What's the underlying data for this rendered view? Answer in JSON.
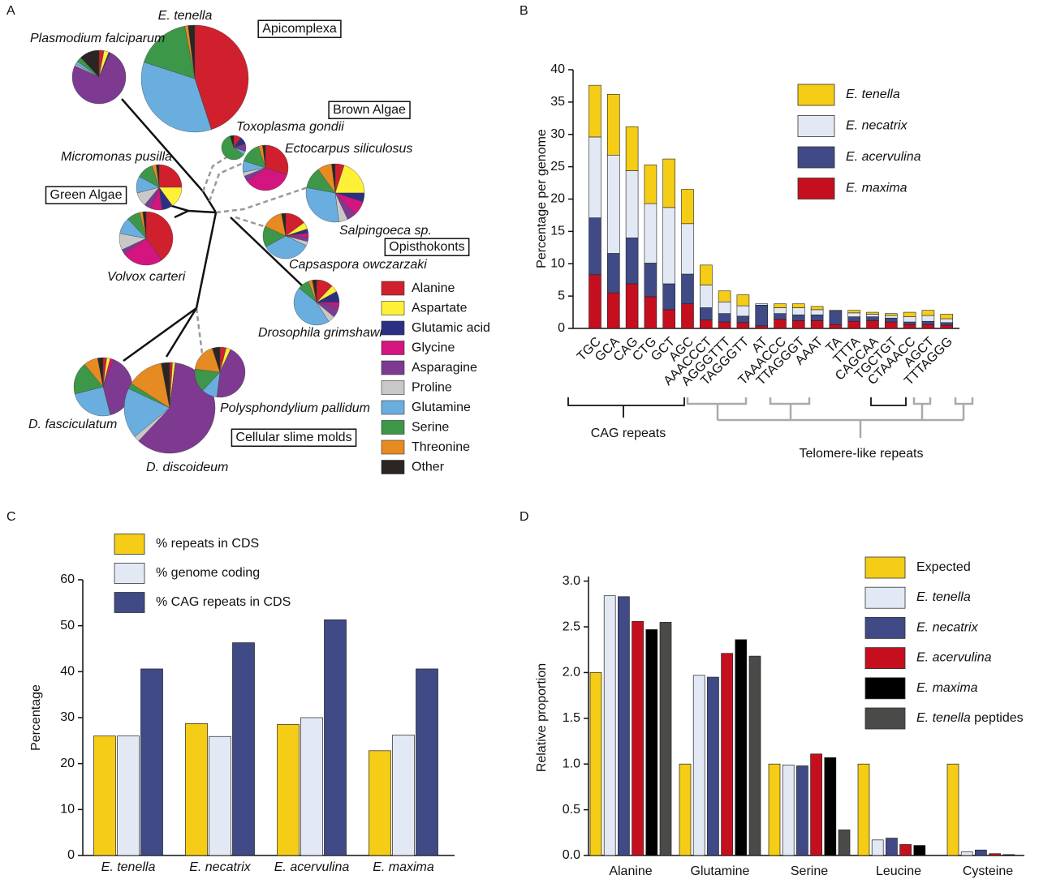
{
  "chart_data": [
    {
      "type": "pie-tree",
      "label": "A",
      "categories": [
        "Alanine",
        "Aspartate",
        "Glutamic acid",
        "Glycine",
        "Asparagine",
        "Proline",
        "Glutamine",
        "Serine",
        "Threonine",
        "Other"
      ],
      "colors": [
        "#d0202e",
        "#fdf036",
        "#2c2f84",
        "#d4147f",
        "#7d3a90",
        "#c8c8c8",
        "#6aaee0",
        "#3d9748",
        "#e68a22",
        "#2b2523"
      ],
      "groups": [
        "Apicomplexa",
        "Brown Algae",
        "Green Algae",
        "Opisthokonts",
        "Cellular slime molds"
      ],
      "species": [
        {
          "name": "E. tenella",
          "values": [
            45,
            0,
            0,
            0,
            0,
            0,
            35,
            17,
            1,
            2
          ]
        },
        {
          "name": "Plasmodium falciparum",
          "values": [
            3,
            3,
            1,
            0,
            75,
            1,
            2,
            3,
            0,
            12
          ]
        },
        {
          "name": "Toxoplasma gondii",
          "values": [
            10,
            0,
            10,
            0,
            10,
            0,
            5,
            60,
            0,
            5
          ]
        },
        {
          "name": "Ectocarpus siliculosus",
          "values": [
            30,
            0,
            0,
            35,
            4,
            3,
            8,
            15,
            3,
            2
          ]
        },
        {
          "name": "Micromonas pusilla",
          "values": [
            25,
            15,
            8,
            8,
            5,
            10,
            12,
            12,
            3,
            2
          ]
        },
        {
          "name": "Salpingoeca sp.",
          "values": [
            5,
            20,
            5,
            8,
            5,
            5,
            30,
            12,
            8,
            2
          ]
        },
        {
          "name": "Volvox carteri",
          "values": [
            40,
            0,
            0,
            25,
            3,
            10,
            10,
            8,
            2,
            2
          ]
        },
        {
          "name": "Capsaspora owczarzaki",
          "values": [
            15,
            5,
            3,
            3,
            3,
            3,
            35,
            15,
            15,
            3
          ]
        },
        {
          "name": "Drosophila grimshawi",
          "values": [
            12,
            5,
            8,
            3,
            8,
            5,
            45,
            8,
            3,
            3
          ]
        },
        {
          "name": "D. fasciculatum",
          "values": [
            2,
            2,
            0,
            2,
            40,
            0,
            25,
            18,
            8,
            3
          ]
        },
        {
          "name": "D. discoideum",
          "values": [
            1,
            1,
            0,
            0,
            60,
            2,
            18,
            2,
            13,
            3
          ]
        },
        {
          "name": "Polysphondylium pallidum",
          "values": [
            4,
            3,
            0,
            0,
            45,
            0,
            10,
            15,
            18,
            5
          ]
        }
      ]
    },
    {
      "type": "stacked-bar",
      "label": "B",
      "ylabel": "Percentage per genome",
      "categories": [
        "TGC",
        "GCA",
        "CAG",
        "CTG",
        "GCT",
        "AGC",
        "AAACCCT",
        "AGGGTTT",
        "TAGGGTT",
        "AT",
        "TAAACCC",
        "TTAGGGT",
        "AAAT",
        "TA",
        "TTTA",
        "CAGCAA",
        "TGCTGT",
        "CTAAACC",
        "AGCT",
        "TTTAGGG"
      ],
      "series": [
        {
          "name": "E. tenella",
          "color": "#f5cc16",
          "values": [
            8,
            9.4,
            6.8,
            6,
            7.5,
            5.3,
            3.1,
            1.7,
            1.7,
            0,
            0.6,
            0.6,
            0.5,
            0,
            0.4,
            0.3,
            0.3,
            0.7,
            0.8,
            0.7
          ]
        },
        {
          "name": "E. necatrix",
          "color": "#e3e9f4",
          "values": [
            12.5,
            15.2,
            10.4,
            9.2,
            11.8,
            7.8,
            3.5,
            1.8,
            1.6,
            0.2,
            0.9,
            1.1,
            0.8,
            0.1,
            0.6,
            0.4,
            0.4,
            0.8,
            0.9,
            0.6
          ]
        },
        {
          "name": "E. acervulina",
          "color": "#3f4a86",
          "values": [
            8.8,
            6.1,
            7.1,
            5.2,
            4,
            4.6,
            1.9,
            1.3,
            1,
            3.2,
            0.9,
            0.9,
            0.9,
            2.1,
            0.7,
            0.6,
            0.6,
            0.4,
            0.5,
            0.4
          ]
        },
        {
          "name": "E. maxima",
          "color": "#c50f1f",
          "values": [
            8.3,
            5.5,
            6.9,
            4.9,
            2.9,
            3.8,
            1.3,
            1,
            0.9,
            0.4,
            1.4,
            1.2,
            1.2,
            0.6,
            1.1,
            1.2,
            1,
            0.6,
            0.6,
            0.5
          ]
        }
      ],
      "ylim": [
        0,
        40
      ],
      "yticks": [
        0,
        5,
        10,
        15,
        20,
        25,
        30,
        35,
        40
      ],
      "annotations": [
        "CAG repeats",
        "Telomere-like repeats"
      ]
    },
    {
      "type": "bar",
      "label": "C",
      "ylabel": "Percentage",
      "categories": [
        "E. tenella",
        "E. necatrix",
        "E. acervulina",
        "E. maxima"
      ],
      "series": [
        {
          "name": "% repeats in CDS",
          "color": "#f5cc16",
          "values": [
            26,
            28.7,
            28.5,
            22.8
          ]
        },
        {
          "name": "% genome coding",
          "color": "#e3e9f4",
          "values": [
            26,
            25.9,
            30,
            26.2
          ]
        },
        {
          "name": "% CAG repeats in CDS",
          "color": "#3f4a86",
          "values": [
            40.6,
            46.3,
            51.3,
            40.6
          ]
        }
      ],
      "ylim": [
        0,
        60
      ],
      "yticks": [
        0,
        10,
        20,
        30,
        40,
        50,
        60
      ]
    },
    {
      "type": "bar",
      "label": "D",
      "ylabel": "Relative proportion",
      "categories": [
        "Alanine",
        "Glutamine",
        "Serine",
        "Leucine",
        "Cysteine"
      ],
      "series": [
        {
          "name": "Expected",
          "color": "#f5cc16",
          "values": [
            2,
            1,
            1,
            1,
            1
          ]
        },
        {
          "name": "E. tenella",
          "color": "#e3e9f4",
          "values": [
            2.84,
            1.97,
            0.99,
            0.17,
            0.04
          ]
        },
        {
          "name": "E. necatrix",
          "color": "#3f4a86",
          "values": [
            2.83,
            1.95,
            0.98,
            0.19,
            0.06
          ]
        },
        {
          "name": "E. acervulina",
          "color": "#c50f1f",
          "values": [
            2.56,
            2.21,
            1.11,
            0.12,
            0.02
          ]
        },
        {
          "name": "E. maxima",
          "color": "#000000",
          "values": [
            2.47,
            2.36,
            1.07,
            0.11,
            0.01
          ]
        },
        {
          "name": "E. tenella peptides",
          "color": "#4a4a48",
          "values": [
            2.55,
            2.18,
            0.28,
            0,
            0
          ]
        }
      ],
      "ylim": [
        0,
        3.05
      ],
      "yticks": [
        {
          "value": 0,
          "label": "0.0"
        },
        {
          "value": 0.5,
          "label": "0.5"
        },
        {
          "value": 1,
          "label": "1.0"
        },
        {
          "value": 1.5,
          "label": "1.5"
        },
        {
          "value": 2,
          "label": "2.0"
        },
        {
          "value": 2.5,
          "label": "2.5"
        },
        {
          "value": 3,
          "label": "3.0"
        }
      ]
    }
  ]
}
